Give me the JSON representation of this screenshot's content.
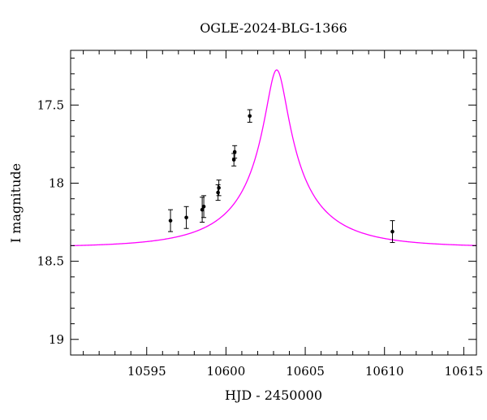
{
  "chart_data": {
    "type": "scatter",
    "title": "OGLE-2024-BLG-1366",
    "xlabel": "HJD - 2450000",
    "ylabel": "I magnitude",
    "xlim": [
      10590.2,
      10615.8
    ],
    "ylim": [
      19.1,
      17.15
    ],
    "y_inverted": true,
    "x_major_ticks": [
      10595,
      10600,
      10605,
      10610,
      10615
    ],
    "x_minor_step": 1,
    "y_major_ticks": [
      17.5,
      18,
      18.5,
      19
    ],
    "y_major_labels": [
      "17.5",
      "18",
      "18.5",
      "19"
    ],
    "y_minor_step": 0.1,
    "grid": false,
    "series": [
      {
        "kind": "points",
        "color": "#000000",
        "points": [
          {
            "x": 10596.5,
            "y": 18.24,
            "err": 0.07
          },
          {
            "x": 10597.5,
            "y": 18.22,
            "err": 0.07
          },
          {
            "x": 10598.5,
            "y": 18.17,
            "err": 0.08
          },
          {
            "x": 10598.6,
            "y": 18.15,
            "err": 0.07
          },
          {
            "x": 10599.5,
            "y": 18.06,
            "err": 0.05
          },
          {
            "x": 10599.55,
            "y": 18.03,
            "err": 0.05
          },
          {
            "x": 10600.5,
            "y": 17.85,
            "err": 0.04
          },
          {
            "x": 10600.55,
            "y": 17.8,
            "err": 0.04
          },
          {
            "x": 10601.5,
            "y": 17.57,
            "err": 0.04
          },
          {
            "x": 10610.5,
            "y": 18.31,
            "err": 0.07
          }
        ]
      },
      {
        "kind": "model",
        "color": "#ff00ff",
        "model": {
          "t0": 10603.2,
          "u0": 0.12,
          "tE": 5.5,
          "base": 18.41,
          "fs": 0.25
        }
      }
    ]
  }
}
